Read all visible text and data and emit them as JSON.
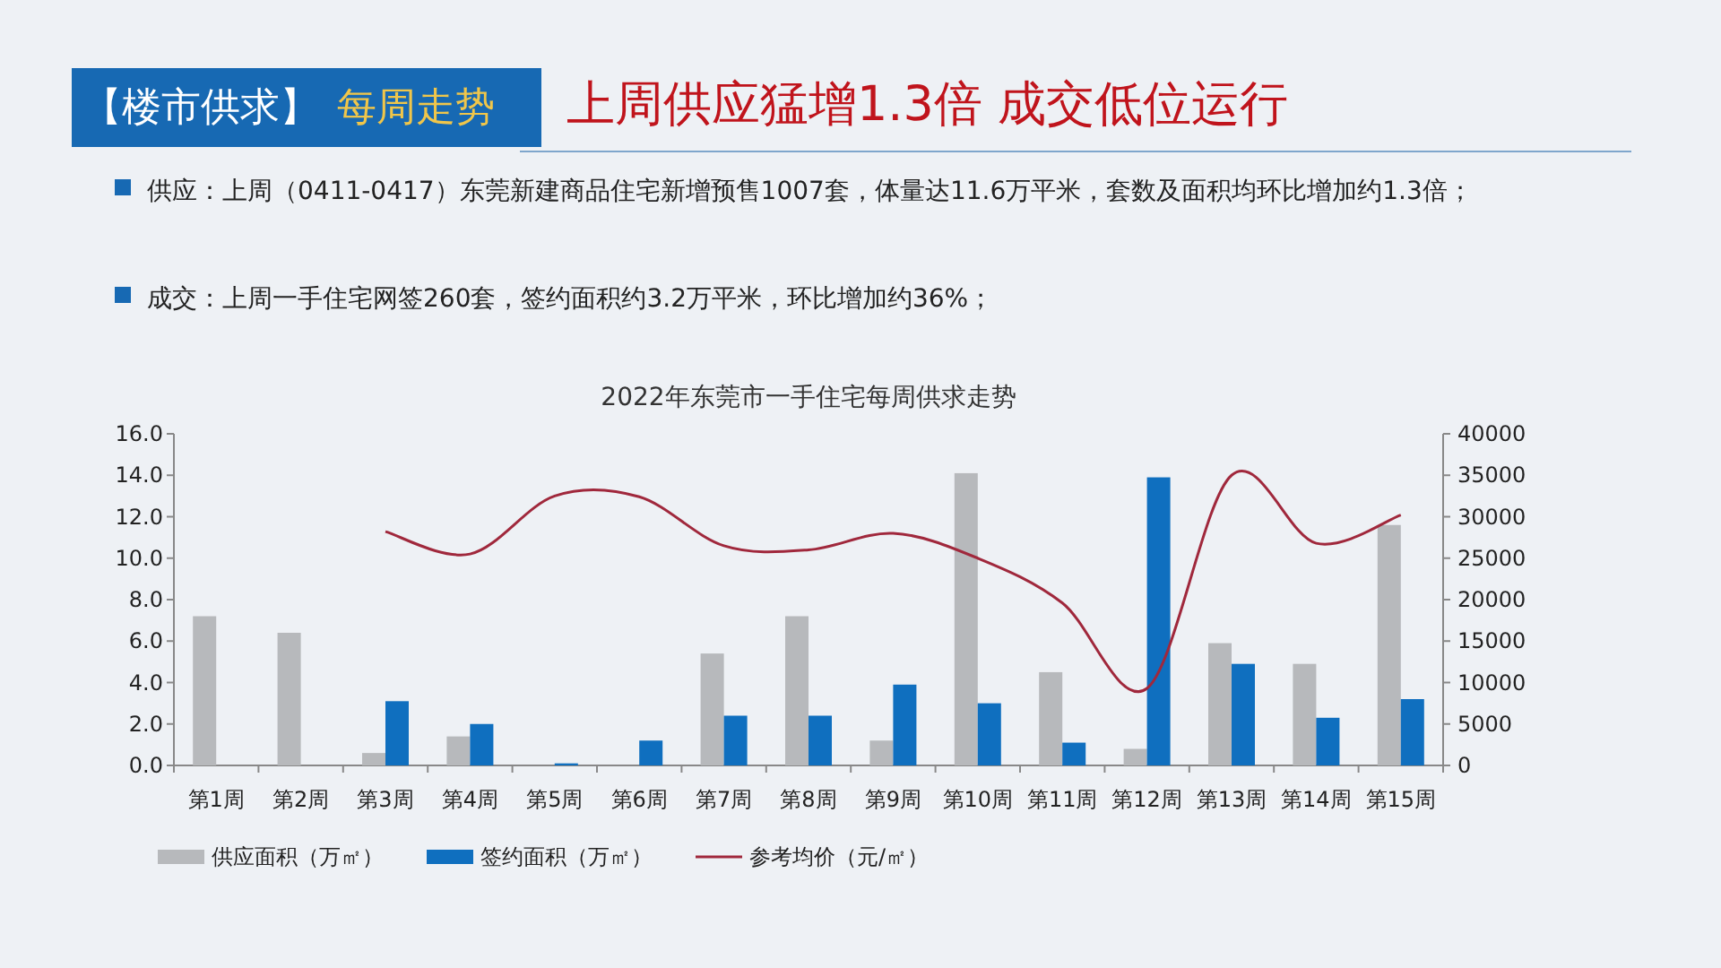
{
  "chart_data": {
    "type": "bar",
    "title": "2022年东莞市一手住宅每周供求走势",
    "annotations": [
      "【楼市供求】",
      "每周走势",
      "上周供应猛增1.3倍 成交低位运行",
      "供应：上周（0411-0417）东莞新建商品住宅新增预售1007套，体量达11.6万平米，套数及面积均环比增加约1.3倍；",
      "成交：上周一手住宅网签260套，签约面积约3.2万平米，环比增加约36%；"
    ],
    "categories": [
      "第1周",
      "第2周",
      "第3周",
      "第4周",
      "第5周",
      "第6周",
      "第7周",
      "第8周",
      "第9周",
      "第10周",
      "第11周",
      "第12周",
      "第13周",
      "第14周",
      "第15周"
    ],
    "series": [
      {
        "name": "供应面积（万㎡）",
        "color": "#b7b9bc",
        "values": [
          7.2,
          6.4,
          0.6,
          1.4,
          0,
          0,
          5.4,
          7.2,
          1.2,
          14.1,
          4.5,
          0.8,
          5.9,
          4.9,
          11.6
        ]
      },
      {
        "name": "签约面积（万㎡）",
        "color": "#0f6fbf",
        "values": [
          0,
          0,
          3.1,
          2.0,
          0.1,
          1.2,
          2.4,
          2.4,
          3.9,
          3.0,
          1.1,
          13.9,
          4.9,
          2.3,
          3.2
        ]
      },
      {
        "name": "参考均价（元/㎡）",
        "color": "#a0283c",
        "type": "line",
        "axis": "y2",
        "values": [
          null,
          null,
          28200,
          25500,
          32500,
          32400,
          26500,
          26000,
          28000,
          25000,
          19600,
          9300,
          35000,
          26800,
          30200
        ]
      }
    ],
    "ylim": [
      0,
      16
    ],
    "yticks": [
      {
        "value": 0,
        "label": "0.0"
      },
      {
        "value": 2,
        "label": "2.0"
      },
      {
        "value": 4,
        "label": "4.0"
      },
      {
        "value": 6,
        "label": "6.0"
      },
      {
        "value": 8,
        "label": "8.0"
      },
      {
        "value": 10,
        "label": "10.0"
      },
      {
        "value": 12,
        "label": "12.0"
      },
      {
        "value": 14,
        "label": "14.0"
      },
      {
        "value": 16,
        "label": "16.0"
      }
    ],
    "y2lim": [
      0,
      40000
    ],
    "y2ticks": [
      0,
      5000,
      10000,
      15000,
      20000,
      25000,
      30000,
      35000,
      40000
    ],
    "legend": "bottom",
    "grid": false,
    "marker": "none"
  }
}
